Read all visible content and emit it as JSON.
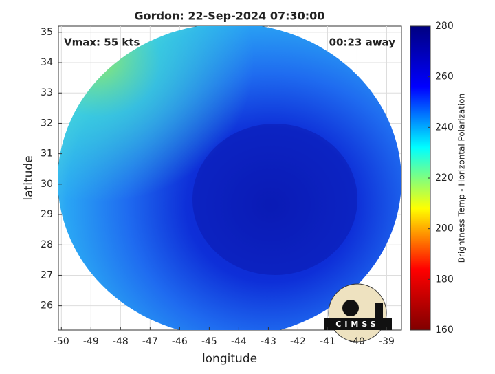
{
  "chart_data": {
    "type": "image",
    "title": "Gordon: 22-Sep-2024 07:30:00",
    "xlabel": "longitude",
    "ylabel": "latitude",
    "xlim": [
      -50.1,
      -38.5
    ],
    "xticks": [
      -50,
      -49,
      -48,
      -47,
      -46,
      -45,
      -44,
      -43,
      -42,
      -41,
      -40,
      -39
    ],
    "ylim": [
      25.2,
      35.2
    ],
    "yticks": [
      26,
      27,
      28,
      29,
      30,
      31,
      32,
      33,
      34,
      35
    ],
    "grid": true,
    "annotations": [
      "Vmax: 55 kts",
      "00:23 away"
    ],
    "logo": "CIMSS",
    "colorbar": {
      "label": "Brightness Temp - Horizontal Polarization",
      "lim": [
        160,
        280
      ],
      "ticks": [
        160,
        180,
        200,
        220,
        240,
        260,
        280
      ],
      "colormap": "jet"
    }
  }
}
